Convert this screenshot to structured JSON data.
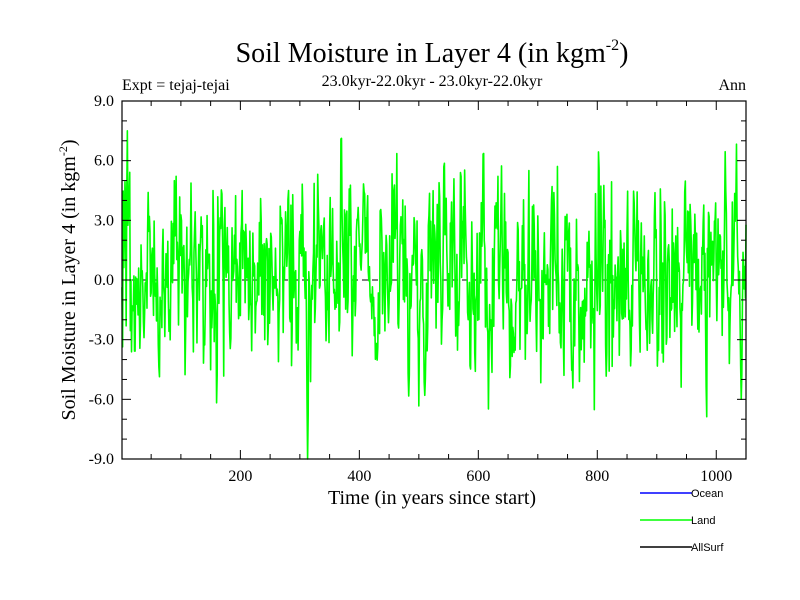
{
  "chart_data": {
    "type": "line",
    "title_main": "Soil Moisture in Layer 4 (in kgm",
    "title_exp": "-2",
    "title_close": ")",
    "subtitle": "23.0kyr-22.0kyr - 23.0kyr-22.0kyr",
    "left_note": "Expt = tejaj-tejai",
    "right_note": "Ann",
    "xlabel": "Time (in years since start)",
    "ylabel_main": "Soil Moisture in Layer 4 (in kgm",
    "ylabel_exp": "-2",
    "ylabel_close": ")",
    "xlim": [
      1,
      1050
    ],
    "ylim": [
      -9.0,
      9.0
    ],
    "xticks": [
      200,
      400,
      600,
      800,
      1000
    ],
    "xtick_labels": [
      "200",
      "400",
      "600",
      "800",
      "1000"
    ],
    "yticks": [
      -9.0,
      -6.0,
      -3.0,
      0.0,
      3.0,
      6.0,
      9.0
    ],
    "ytick_labels": [
      "-9.0",
      "-6.0",
      "-3.0",
      "0.0",
      "3.0",
      "6.0",
      "9.0"
    ],
    "zero_line": true,
    "colors": {
      "ocean": "#0000ff",
      "land": "#00ff00",
      "allsurf": "#000000",
      "axis": "#000000"
    },
    "legend": [
      {
        "name": "Ocean",
        "color": "#0000ff"
      },
      {
        "name": "Land",
        "color": "#00ff00"
      },
      {
        "name": "AllSurf",
        "color": "#000000"
      }
    ],
    "series": [
      {
        "name": "Land",
        "color": "#00ff00",
        "n_points": 1050,
        "x_start": 1,
        "x_step": 1,
        "noise": {
          "mean": 0.0,
          "std": 2.5,
          "autocorr": 0.45,
          "min": -9.0,
          "max": 7.5,
          "seed": 20230422
        }
      }
    ]
  }
}
